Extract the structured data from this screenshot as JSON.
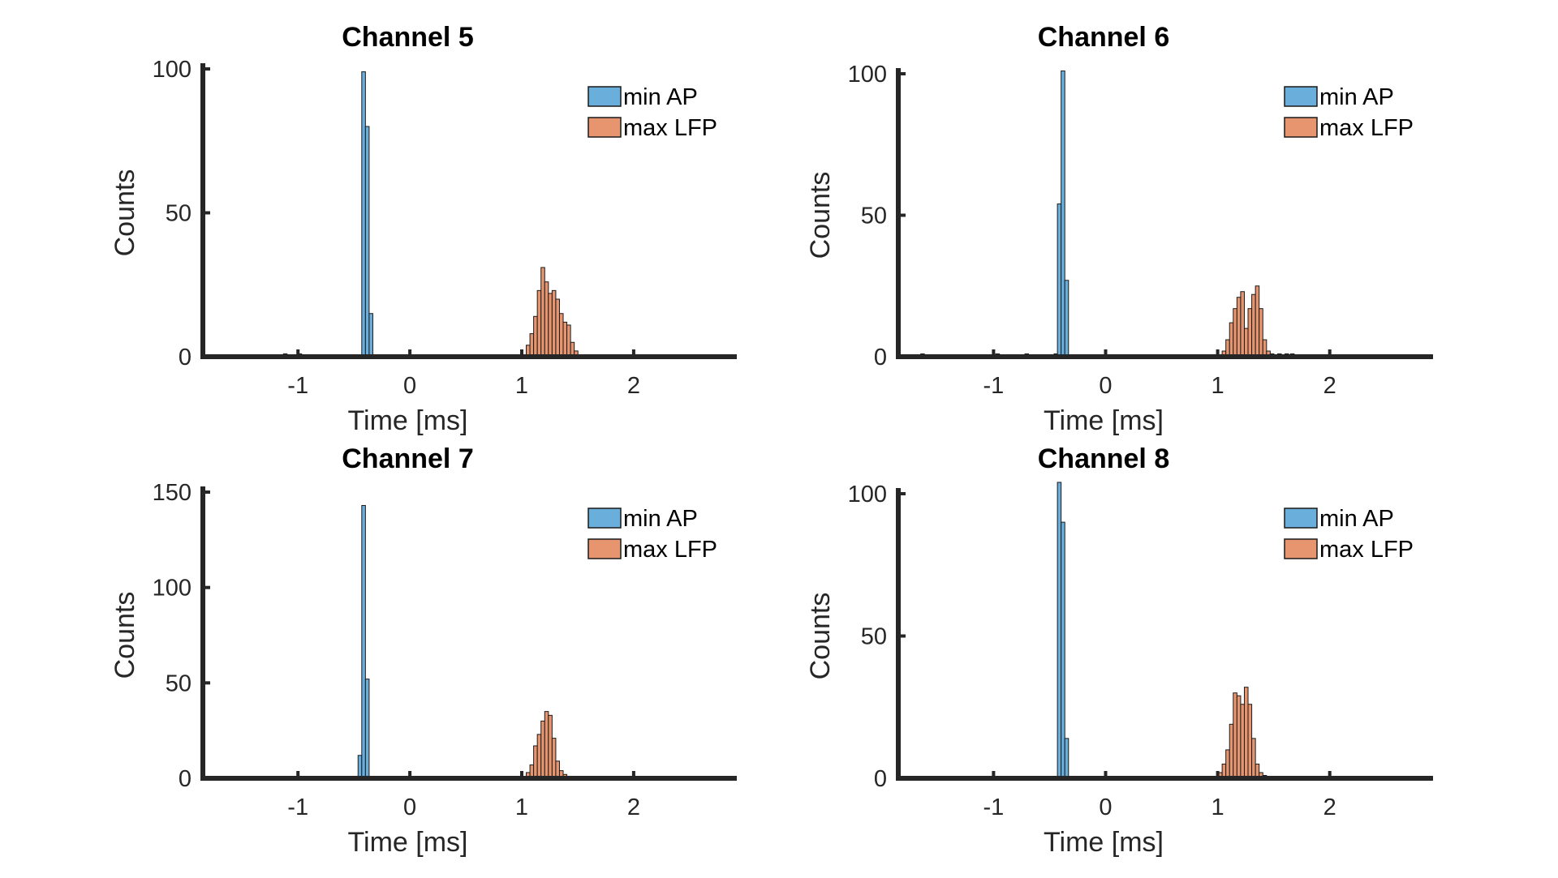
{
  "chart_data": [
    {
      "type": "histogram",
      "title": "Channel 5",
      "xlabel": "Time [ms]",
      "ylabel": "Counts",
      "xlim": [
        -1.85,
        2.9
      ],
      "ylim": [
        0,
        100
      ],
      "xticks": [
        -1,
        0,
        1,
        2
      ],
      "xtick_labels": [
        "-1",
        "0",
        "1",
        "2"
      ],
      "yticks": [
        0,
        50,
        100
      ],
      "ytick_labels": [
        "0",
        "50",
        "100"
      ],
      "bin_width": 0.033,
      "legend_position": "top-right",
      "series": [
        {
          "name": "min AP",
          "color": "#6aaedb",
          "bins": [
            [
              -1.13,
              1
            ],
            [
              -1.0,
              1
            ],
            [
              -0.43,
              99
            ],
            [
              -0.397,
              80
            ],
            [
              -0.364,
              15
            ]
          ]
        },
        {
          "name": "max LFP",
          "color": "#e7956f",
          "bins": [
            [
              1.04,
              4
            ],
            [
              1.073,
              8
            ],
            [
              1.106,
              14
            ],
            [
              1.139,
              23
            ],
            [
              1.172,
              31
            ],
            [
              1.205,
              26
            ],
            [
              1.238,
              22
            ],
            [
              1.271,
              23
            ],
            [
              1.304,
              20
            ],
            [
              1.337,
              15
            ],
            [
              1.37,
              12
            ],
            [
              1.403,
              11
            ],
            [
              1.436,
              5
            ],
            [
              1.469,
              2
            ]
          ]
        }
      ]
    },
    {
      "type": "histogram",
      "title": "Channel 6",
      "xlabel": "Time [ms]",
      "ylabel": "Counts",
      "xlim": [
        -1.85,
        2.9
      ],
      "ylim": [
        0,
        100
      ],
      "xticks": [
        -1,
        0,
        1,
        2
      ],
      "xtick_labels": [
        "-1",
        "0",
        "1",
        "2"
      ],
      "yticks": [
        0,
        50,
        100
      ],
      "ytick_labels": [
        "0",
        "50",
        "100"
      ],
      "bin_width": 0.033,
      "legend_position": "top-right",
      "series": [
        {
          "name": "min AP",
          "color": "#6aaedb",
          "bins": [
            [
              -1.65,
              1
            ],
            [
              -0.98,
              1
            ],
            [
              -0.72,
              1
            ],
            [
              -0.46,
              1
            ],
            [
              -0.43,
              54
            ],
            [
              -0.397,
              101
            ],
            [
              -0.364,
              27
            ]
          ]
        },
        {
          "name": "max LFP",
          "color": "#e7956f",
          "bins": [
            [
              1.04,
              2
            ],
            [
              1.073,
              6
            ],
            [
              1.106,
              12
            ],
            [
              1.139,
              17
            ],
            [
              1.172,
              21
            ],
            [
              1.205,
              23
            ],
            [
              1.238,
              10
            ],
            [
              1.271,
              17
            ],
            [
              1.304,
              22
            ],
            [
              1.337,
              25
            ],
            [
              1.37,
              17
            ],
            [
              1.403,
              6
            ],
            [
              1.436,
              2
            ],
            [
              1.469,
              1
            ],
            [
              1.535,
              1
            ],
            [
              1.6,
              1
            ],
            [
              1.65,
              1
            ]
          ]
        }
      ]
    },
    {
      "type": "histogram",
      "title": "Channel 7",
      "xlabel": "Time [ms]",
      "ylabel": "Counts",
      "xlim": [
        -1.85,
        2.9
      ],
      "ylim": [
        0,
        150
      ],
      "xticks": [
        -1,
        0,
        1,
        2
      ],
      "xtick_labels": [
        "-1",
        "0",
        "1",
        "2"
      ],
      "yticks": [
        0,
        50,
        100,
        150
      ],
      "ytick_labels": [
        "0",
        "50",
        "100",
        "150"
      ],
      "bin_width": 0.033,
      "legend_position": "top-right",
      "series": [
        {
          "name": "min AP",
          "color": "#6aaedb",
          "bins": [
            [
              -0.463,
              12
            ],
            [
              -0.43,
              143
            ],
            [
              -0.397,
              52
            ]
          ]
        },
        {
          "name": "max LFP",
          "color": "#e7956f",
          "bins": [
            [
              1.04,
              3
            ],
            [
              1.073,
              7
            ],
            [
              1.106,
              17
            ],
            [
              1.139,
              23
            ],
            [
              1.172,
              30
            ],
            [
              1.205,
              35
            ],
            [
              1.238,
              33
            ],
            [
              1.271,
              21
            ],
            [
              1.304,
              9
            ],
            [
              1.337,
              4
            ],
            [
              1.37,
              2
            ]
          ]
        }
      ]
    },
    {
      "type": "histogram",
      "title": "Channel 8",
      "xlabel": "Time [ms]",
      "ylabel": "Counts",
      "xlim": [
        -1.85,
        2.9
      ],
      "ylim": [
        0,
        100
      ],
      "xticks": [
        -1,
        0,
        1,
        2
      ],
      "xtick_labels": [
        "-1",
        "0",
        "1",
        "2"
      ],
      "yticks": [
        0,
        50,
        100
      ],
      "ytick_labels": [
        "0",
        "50",
        "100"
      ],
      "bin_width": 0.033,
      "legend_position": "top-right",
      "series": [
        {
          "name": "min AP",
          "color": "#6aaedb",
          "bins": [
            [
              -0.43,
              104
            ],
            [
              -0.397,
              90
            ],
            [
              -0.364,
              14
            ]
          ]
        },
        {
          "name": "max LFP",
          "color": "#e7956f",
          "bins": [
            [
              1.007,
              2
            ],
            [
              1.04,
              5
            ],
            [
              1.073,
              10
            ],
            [
              1.106,
              19
            ],
            [
              1.139,
              30
            ],
            [
              1.172,
              29
            ],
            [
              1.205,
              26
            ],
            [
              1.238,
              32
            ],
            [
              1.271,
              26
            ],
            [
              1.304,
              14
            ],
            [
              1.337,
              5
            ],
            [
              1.37,
              2
            ],
            [
              1.403,
              1
            ]
          ]
        }
      ]
    }
  ]
}
